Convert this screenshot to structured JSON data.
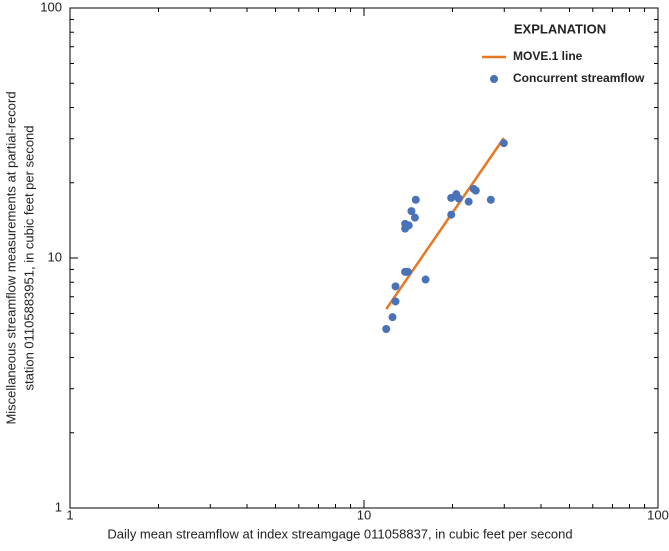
{
  "chart_data": {
    "type": "scatter",
    "xlabel": "Daily mean streamflow at index streamgage 011058837, in cubic feet per second",
    "ylabel": [
      "Miscellaneous streamflow measurements at partial-record",
      "station 01105883951, in cubic feet per second"
    ],
    "legend_title": "EXPLANATION",
    "legend": "upper right",
    "xscale": "log",
    "yscale": "log",
    "xlim": [
      1,
      100
    ],
    "ylim": [
      1,
      100
    ],
    "xticks": [
      1,
      10,
      100
    ],
    "yticks": [
      1,
      10,
      100
    ],
    "xticks_minor": [
      2,
      3,
      4,
      5,
      6,
      7,
      8,
      9,
      20,
      30,
      40,
      50,
      60,
      70,
      80,
      90
    ],
    "yticks_minor": [
      2,
      3,
      4,
      5,
      6,
      7,
      8,
      9,
      20,
      30,
      40,
      50,
      60,
      70,
      80,
      90
    ],
    "series": [
      {
        "name": "MOVE.1 line",
        "kind": "line",
        "color": "#e87722",
        "x": [
          11.9,
          29.9
        ],
        "values": [
          6.25,
          30.2
        ]
      },
      {
        "name": "Concurrent streamflow",
        "kind": "points",
        "color": "#4a72b8",
        "x": [
          11.9,
          12.5,
          12.8,
          12.8,
          13.8,
          14.1,
          16.2,
          13.8,
          13.8,
          14.2,
          14.5,
          14.9,
          15.0,
          19.8,
          19.8,
          20.6,
          21.0,
          22.7,
          23.6,
          24.0,
          27.0,
          29.9
        ],
        "values": [
          5.2,
          5.8,
          6.7,
          7.7,
          8.8,
          8.8,
          8.2,
          13.7,
          13.1,
          13.5,
          15.4,
          14.5,
          17.1,
          14.9,
          17.4,
          18.0,
          17.3,
          16.8,
          18.9,
          18.6,
          17.1,
          28.8
        ]
      }
    ]
  }
}
